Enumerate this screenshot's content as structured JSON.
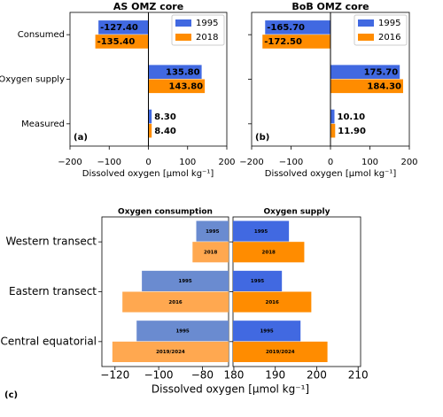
{
  "chart_data": [
    {
      "type": "bar",
      "orientation": "horizontal",
      "title": "AS OMZ core",
      "panel_label": "(a)",
      "xlabel": "Dissolved oxygen [μmol kg⁻¹]",
      "categories": [
        "Consumed",
        "Oxygen supply",
        "Measured"
      ],
      "series": [
        {
          "name": "1995",
          "color": "#4169e1",
          "values": [
            -127.4,
            135.8,
            8.3
          ],
          "value_labels": [
            "-127.40",
            "135.80",
            "8.30"
          ]
        },
        {
          "name": "2018",
          "color": "#ff8c00",
          "values": [
            -135.4,
            143.8,
            8.4
          ],
          "value_labels": [
            "-135.40",
            "143.80",
            "8.40"
          ]
        }
      ],
      "xlim": [
        -200,
        200
      ],
      "xticks": [
        {
          "value": -200,
          "label": "−200"
        },
        {
          "value": -100,
          "label": "−100"
        },
        0,
        100,
        200
      ],
      "legend": "upper right",
      "zero_line": true
    },
    {
      "type": "bar",
      "orientation": "horizontal",
      "title": "BoB OMZ core",
      "panel_label": "(b)",
      "xlabel": "Dissolved oxygen [μmol kg⁻¹]",
      "series": [
        {
          "name": "1995",
          "color": "#4169e1",
          "values": [
            -165.7,
            175.7,
            10.1
          ],
          "value_labels": [
            "-165.70",
            "175.70",
            "10.10"
          ]
        },
        {
          "name": "2016",
          "color": "#ff8c00",
          "values": [
            -172.5,
            184.3,
            11.9
          ],
          "value_labels": [
            "-172.50",
            "184.30",
            "11.90"
          ]
        }
      ],
      "xlim": [
        -200,
        200
      ],
      "xticks": [
        {
          "value": -200,
          "label": "−200"
        },
        {
          "value": -100,
          "label": "−100"
        },
        0,
        100,
        200
      ],
      "legend": "upper right",
      "zero_line": true
    },
    {
      "type": "bar",
      "orientation": "horizontal",
      "title": "Oxygen consumption",
      "panel_label": "(c)",
      "categories": [
        "Western transect",
        "Eastern transect",
        "Central equatorial"
      ],
      "series": [
        {
          "color": "#6a8bd0",
          "values": [
            -82.8,
            -107.7,
            -110.1
          ],
          "labels": [
            "1995",
            "1995",
            "1995"
          ]
        },
        {
          "color": "#ffa850",
          "values": [
            -84.5,
            -116.6,
            -121.2
          ],
          "labels": [
            "2018",
            "2016",
            "2019/2024"
          ]
        }
      ],
      "xlim": [
        -126,
        -68
      ],
      "xticks": [
        {
          "value": -120,
          "label": "−120"
        },
        {
          "value": -100,
          "label": "−100"
        },
        {
          "value": -80,
          "label": "−80"
        }
      ]
    },
    {
      "type": "bar",
      "orientation": "horizontal",
      "title": "Oxygen supply",
      "xlabel": "Dissolved oxygen [μmol kg⁻¹]",
      "series": [
        {
          "color": "#4169e1",
          "values": [
            193.3,
            191.6,
            196.1
          ],
          "labels": [
            "1995",
            "1995",
            "1995"
          ]
        },
        {
          "color": "#ff8c00",
          "values": [
            197.0,
            198.7,
            202.6
          ],
          "labels": [
            "2018",
            "2016",
            "2019/2024"
          ]
        }
      ],
      "xlim": [
        179.8,
        210.6
      ],
      "xticks": [
        180,
        190,
        200,
        210
      ]
    }
  ]
}
